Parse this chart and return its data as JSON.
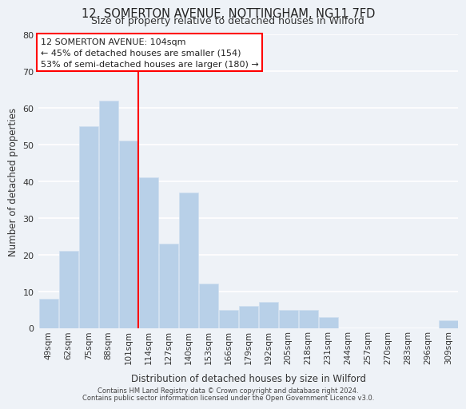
{
  "title_line1": "12, SOMERTON AVENUE, NOTTINGHAM, NG11 7FD",
  "title_line2": "Size of property relative to detached houses in Wilford",
  "xlabel": "Distribution of detached houses by size in Wilford",
  "ylabel": "Number of detached properties",
  "bar_labels": [
    "49sqm",
    "62sqm",
    "75sqm",
    "88sqm",
    "101sqm",
    "114sqm",
    "127sqm",
    "140sqm",
    "153sqm",
    "166sqm",
    "179sqm",
    "192sqm",
    "205sqm",
    "218sqm",
    "231sqm",
    "244sqm",
    "257sqm",
    "270sqm",
    "283sqm",
    "296sqm",
    "309sqm"
  ],
  "bar_values": [
    8,
    21,
    55,
    62,
    51,
    41,
    23,
    37,
    12,
    5,
    6,
    7,
    5,
    5,
    3,
    0,
    0,
    0,
    0,
    0,
    2
  ],
  "bar_color": "#b8d0e8",
  "bar_edge_color": "#d0dff0",
  "red_line_x": 4.5,
  "annotation_title": "12 SOMERTON AVENUE: 104sqm",
  "annotation_line1": "← 45% of detached houses are smaller (154)",
  "annotation_line2": "53% of semi-detached houses are larger (180) →",
  "ylim": [
    0,
    80
  ],
  "yticks": [
    0,
    10,
    20,
    30,
    40,
    50,
    60,
    70,
    80
  ],
  "background_color": "#eef2f7",
  "plot_bg_color": "#eef2f7",
  "footer_line1": "Contains HM Land Registry data © Crown copyright and database right 2024.",
  "footer_line2": "Contains public sector information licensed under the Open Government Licence v3.0."
}
